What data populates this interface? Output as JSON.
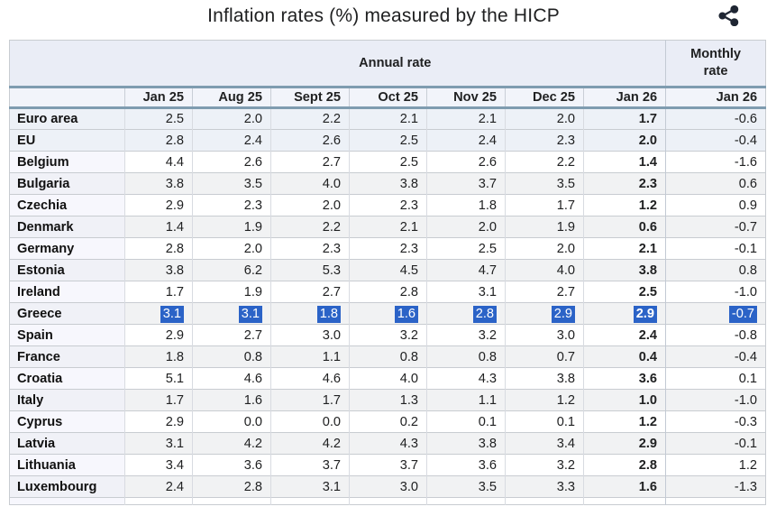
{
  "title": "Inflation rates (%) measured by the HICP",
  "share_icon": "share-icon",
  "colors": {
    "selection_highlight": "#2b63c7",
    "header_rule": "#7f9cb0",
    "aggregate_row_bg": "#edf1f7",
    "stripe_gray_bg": "#f1f2f3",
    "header_band_bg": "#eaedf6",
    "share_icon_color": "#1f2633"
  },
  "table": {
    "group_headers": {
      "annual": "Annual rate",
      "monthly": "Monthly rate"
    },
    "columns": [
      "Jan 25",
      "Aug 25",
      "Sept 25",
      "Oct 25",
      "Nov 25",
      "Dec 25",
      "Jan 26"
    ],
    "monthly_column": "Jan 26",
    "rows": [
      {
        "name": "Euro area",
        "stripe": "blue",
        "selected": false,
        "annual": [
          "2.5",
          "2.0",
          "2.2",
          "2.1",
          "2.1",
          "2.0",
          "1.7"
        ],
        "monthly": "-0.6"
      },
      {
        "name": "EU",
        "stripe": "blue",
        "selected": false,
        "annual": [
          "2.8",
          "2.4",
          "2.6",
          "2.5",
          "2.4",
          "2.3",
          "2.0"
        ],
        "monthly": "-0.4"
      },
      {
        "name": "Belgium",
        "stripe": "white",
        "selected": false,
        "annual": [
          "4.4",
          "2.6",
          "2.7",
          "2.5",
          "2.6",
          "2.2",
          "1.4"
        ],
        "monthly": "-1.6"
      },
      {
        "name": "Bulgaria",
        "stripe": "gray",
        "selected": false,
        "annual": [
          "3.8",
          "3.5",
          "4.0",
          "3.8",
          "3.7",
          "3.5",
          "2.3"
        ],
        "monthly": "0.6"
      },
      {
        "name": "Czechia",
        "stripe": "white",
        "selected": false,
        "annual": [
          "2.9",
          "2.3",
          "2.0",
          "2.3",
          "1.8",
          "1.7",
          "1.2"
        ],
        "monthly": "0.9"
      },
      {
        "name": "Denmark",
        "stripe": "gray",
        "selected": false,
        "annual": [
          "1.4",
          "1.9",
          "2.2",
          "2.1",
          "2.0",
          "1.9",
          "0.6"
        ],
        "monthly": "-0.7"
      },
      {
        "name": "Germany",
        "stripe": "white",
        "selected": false,
        "annual": [
          "2.8",
          "2.0",
          "2.3",
          "2.3",
          "2.5",
          "2.0",
          "2.1"
        ],
        "monthly": "-0.1"
      },
      {
        "name": "Estonia",
        "stripe": "gray",
        "selected": false,
        "annual": [
          "3.8",
          "6.2",
          "5.3",
          "4.5",
          "4.7",
          "4.0",
          "3.8"
        ],
        "monthly": "0.8"
      },
      {
        "name": "Ireland",
        "stripe": "white",
        "selected": false,
        "annual": [
          "1.7",
          "1.9",
          "2.7",
          "2.8",
          "3.1",
          "2.7",
          "2.5"
        ],
        "monthly": "-1.0"
      },
      {
        "name": "Greece",
        "stripe": "gray",
        "selected": true,
        "annual": [
          "3.1",
          "3.1",
          "1.8",
          "1.6",
          "2.8",
          "2.9",
          "2.9"
        ],
        "monthly": "-0.7"
      },
      {
        "name": "Spain",
        "stripe": "white",
        "selected": false,
        "annual": [
          "2.9",
          "2.7",
          "3.0",
          "3.2",
          "3.2",
          "3.0",
          "2.4"
        ],
        "monthly": "-0.8"
      },
      {
        "name": "France",
        "stripe": "gray",
        "selected": false,
        "annual": [
          "1.8",
          "0.8",
          "1.1",
          "0.8",
          "0.8",
          "0.7",
          "0.4"
        ],
        "monthly": "-0.4"
      },
      {
        "name": "Croatia",
        "stripe": "white",
        "selected": false,
        "annual": [
          "5.1",
          "4.6",
          "4.6",
          "4.0",
          "4.3",
          "3.8",
          "3.6"
        ],
        "monthly": "0.1"
      },
      {
        "name": "Italy",
        "stripe": "gray",
        "selected": false,
        "annual": [
          "1.7",
          "1.6",
          "1.7",
          "1.3",
          "1.1",
          "1.2",
          "1.0"
        ],
        "monthly": "-1.0"
      },
      {
        "name": "Cyprus",
        "stripe": "white",
        "selected": false,
        "annual": [
          "2.9",
          "0.0",
          "0.0",
          "0.2",
          "0.1",
          "0.1",
          "1.2"
        ],
        "monthly": "-0.3"
      },
      {
        "name": "Latvia",
        "stripe": "gray",
        "selected": false,
        "annual": [
          "3.1",
          "4.2",
          "4.2",
          "4.3",
          "3.8",
          "3.4",
          "2.9"
        ],
        "monthly": "-0.1"
      },
      {
        "name": "Lithuania",
        "stripe": "white",
        "selected": false,
        "annual": [
          "3.4",
          "3.6",
          "3.7",
          "3.7",
          "3.6",
          "3.2",
          "2.8"
        ],
        "monthly": "1.2"
      },
      {
        "name": "Luxembourg",
        "stripe": "gray",
        "selected": false,
        "annual": [
          "2.4",
          "2.8",
          "3.1",
          "3.0",
          "3.5",
          "3.3",
          "1.6"
        ],
        "monthly": "-1.3"
      }
    ]
  }
}
